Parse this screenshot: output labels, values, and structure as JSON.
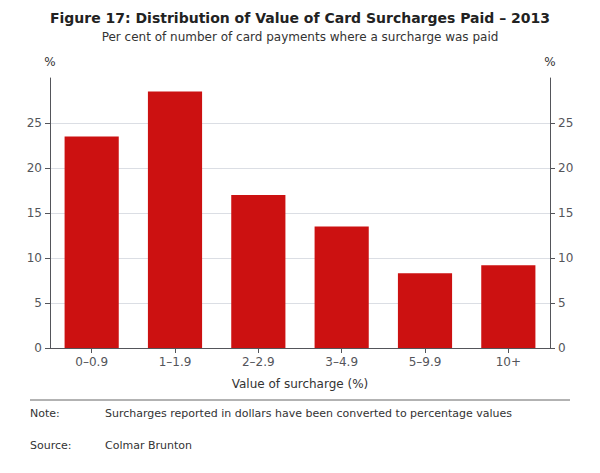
{
  "chart_data": {
    "type": "bar",
    "title": "Figure 17: Distribution of Value of Card Surcharges Paid – 2013",
    "subtitle": "Per cent of number of card payments where a surcharge was paid",
    "categories": [
      "0–0.9",
      "1–1.9",
      "2–2.9",
      "3–4.9",
      "5–9.9",
      "10+"
    ],
    "values": [
      23.5,
      28.5,
      17.0,
      13.5,
      8.3,
      9.2
    ],
    "color": "#cc1111",
    "xlabel": "Value of surcharge (%)",
    "ylabel": "%",
    "y2label": "%",
    "ylim": [
      0,
      30
    ],
    "yticks": [
      0,
      5,
      10,
      15,
      20,
      25
    ],
    "y2lim": [
      0,
      30
    ],
    "y2ticks": [
      0,
      5,
      10,
      15,
      20,
      25
    ],
    "grid": true,
    "annotations": [
      {
        "label": "Note:",
        "text": "Surcharges reported in dollars have been converted to percentage values"
      },
      {
        "label": "Source:",
        "text": "Colmar Brunton"
      }
    ]
  }
}
